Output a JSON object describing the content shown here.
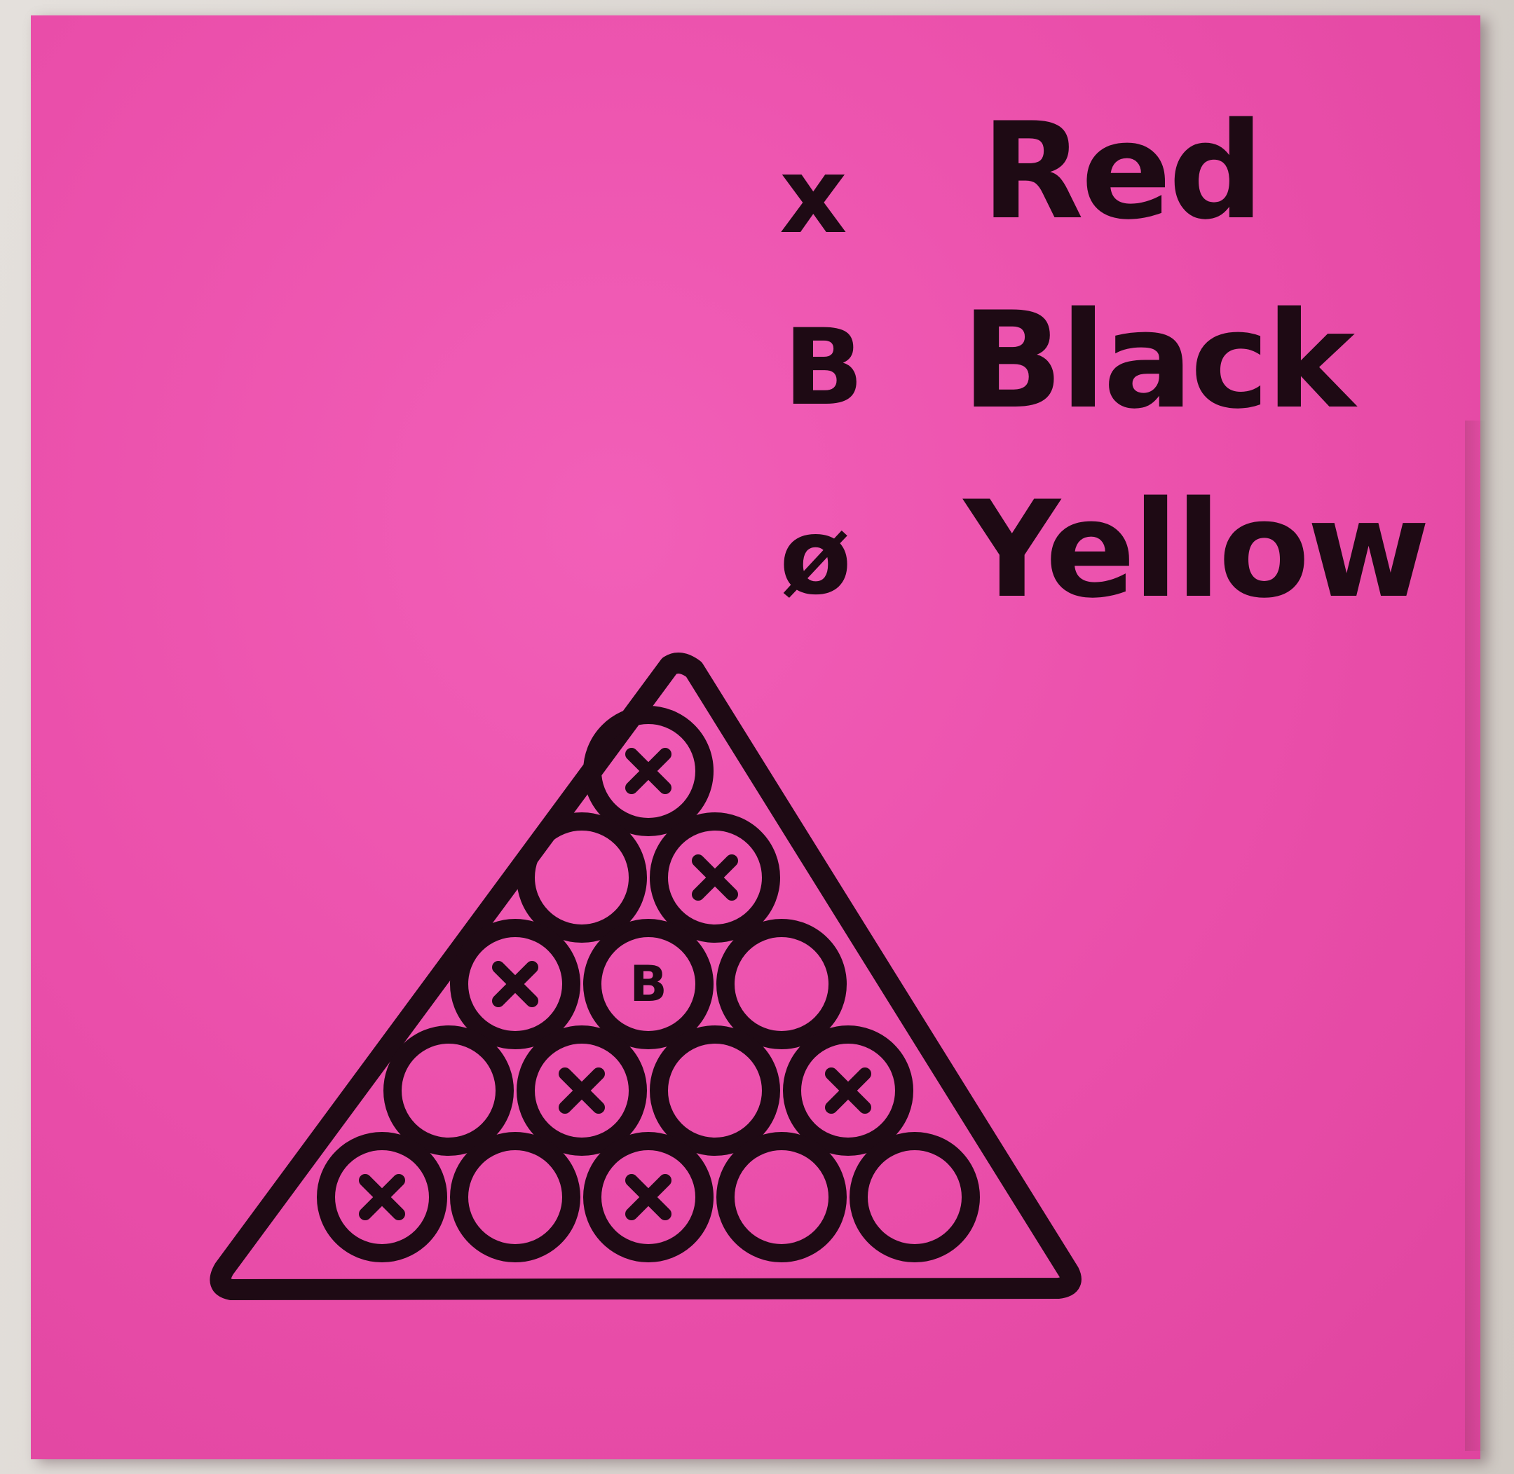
{
  "legend": [
    {
      "symbol": "x",
      "label": "Red"
    },
    {
      "symbol": "B",
      "label": "Black"
    },
    {
      "symbol": "ø",
      "label": "Yellow"
    }
  ],
  "colors": {
    "note": "#ea4eaa",
    "ink": "#1e0a14",
    "wall": "#d9d4cf"
  },
  "rack": {
    "rows": [
      [
        "x"
      ],
      [
        "",
        "x"
      ],
      [
        "x",
        "B",
        ""
      ],
      [
        "",
        "x",
        "",
        "x"
      ],
      [
        "x",
        "",
        "x",
        "",
        ""
      ]
    ]
  }
}
